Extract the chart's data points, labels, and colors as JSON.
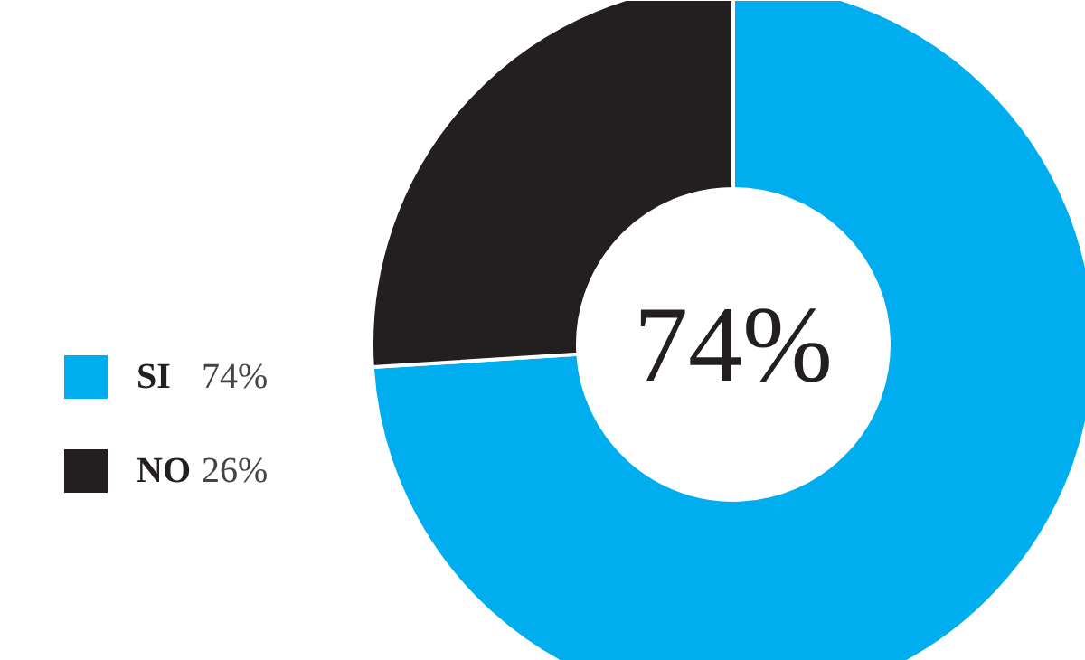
{
  "chart_data": {
    "type": "donut",
    "categories": [
      "SI",
      "NO"
    ],
    "values": [
      74,
      26
    ],
    "value_labels": [
      "74%",
      "26%"
    ],
    "colors": [
      "#00aeef",
      "#231f20"
    ],
    "annotations": [
      "74%"
    ],
    "legend": "left"
  }
}
